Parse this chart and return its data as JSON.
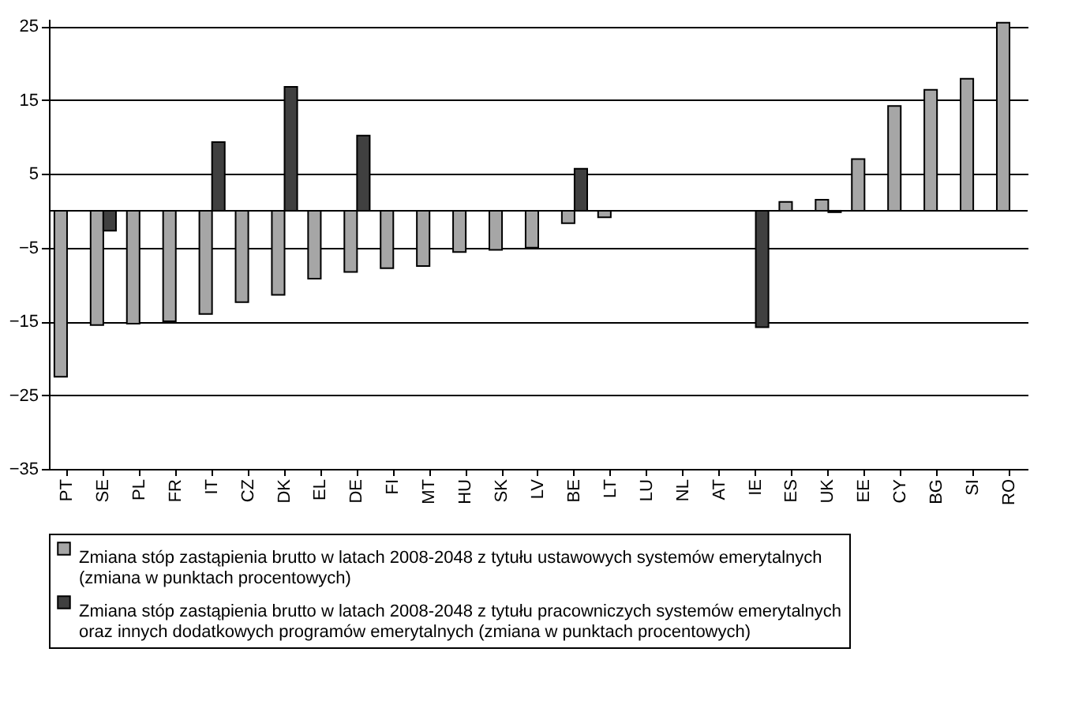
{
  "chart_data": {
    "type": "bar",
    "categories": [
      "PT",
      "SE",
      "PL",
      "FR",
      "IT",
      "CZ",
      "DK",
      "EL",
      "DE",
      "FI",
      "MT",
      "HU",
      "SK",
      "LV",
      "BE",
      "LT",
      "LU",
      "NL",
      "AT",
      "IE",
      "ES",
      "UK",
      "EE",
      "CY",
      "BG",
      "SI",
      "RO"
    ],
    "series": [
      {
        "name": "Zmiana stóp zastąpienia brutto w latach 2008-2048 z tytułu ustawowych systemów emerytalnych (zmiana w punktach procentowych)",
        "color": "#a6a6a6",
        "values": [
          -22.5,
          -15.5,
          -15.3,
          -15.0,
          -14.0,
          -12.4,
          -11.4,
          -9.2,
          -8.3,
          -7.8,
          -7.5,
          -5.6,
          -5.3,
          -5.0,
          -1.7,
          -0.9,
          null,
          null,
          null,
          null,
          1.2,
          1.5,
          7.0,
          14.2,
          16.4,
          17.9,
          25.5
        ]
      },
      {
        "name": "Zmiana stóp zastąpienia brutto w latach 2008-2048 z tytułu pracowniczych systemów emerytalnych oraz innych dodatkowych programów emerytalnych (zmiana w punktach procentowych)",
        "color": "#404040",
        "values": [
          null,
          -2.7,
          null,
          null,
          9.3,
          null,
          16.8,
          null,
          10.2,
          null,
          null,
          null,
          null,
          null,
          5.7,
          null,
          null,
          null,
          null,
          -15.8,
          null,
          -0.2,
          null,
          null,
          null,
          null,
          null
        ]
      }
    ],
    "ylim": [
      -35,
      26
    ],
    "yticks": [
      -35,
      -25,
      -15,
      -5,
      5,
      15,
      25
    ],
    "grid": "y",
    "legend": "bottom"
  }
}
